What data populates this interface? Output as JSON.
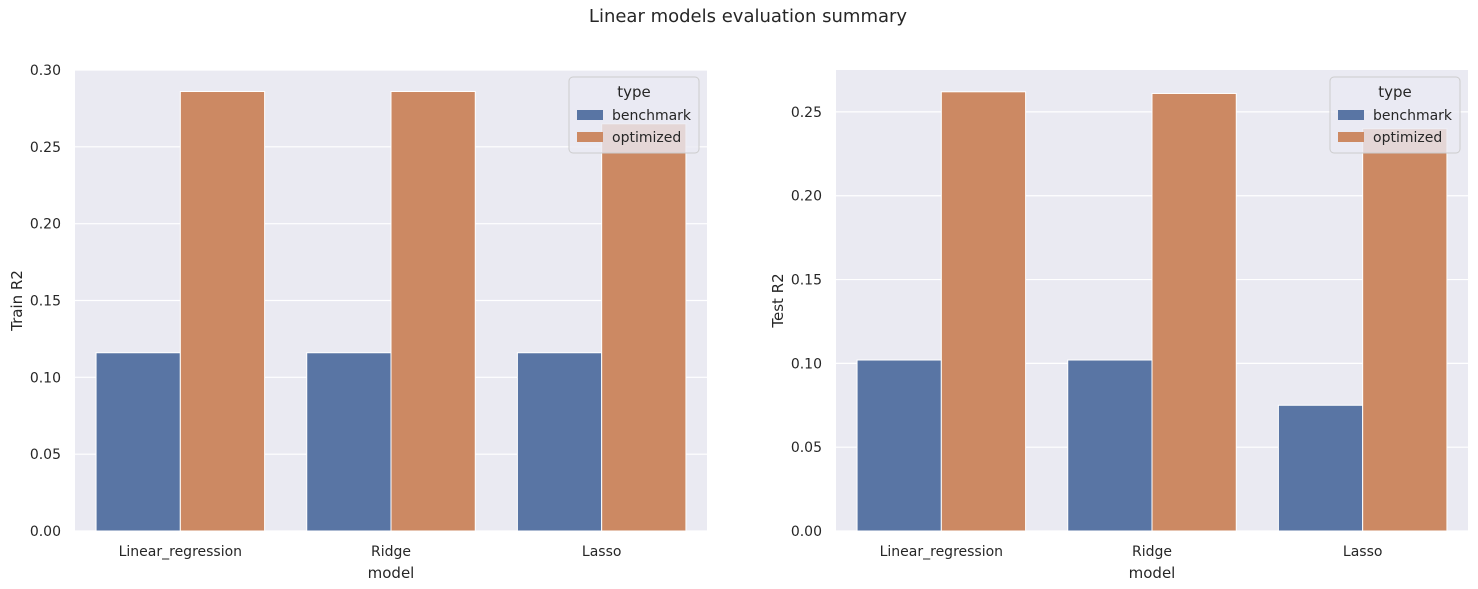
{
  "figure": {
    "title": "Linear models evaluation summary"
  },
  "colors": {
    "benchmark": "#5975a4",
    "optimized": "#cc8963",
    "background": "#eaeaf2",
    "grid": "#ffffff"
  },
  "chart_data": [
    {
      "type": "bar",
      "title": "",
      "xlabel": "model",
      "ylabel": "Train R2",
      "categories": [
        "Linear_regression",
        "Ridge",
        "Lasso"
      ],
      "series": [
        {
          "name": "benchmark",
          "values": [
            0.116,
            0.116,
            0.116
          ]
        },
        {
          "name": "optimized",
          "values": [
            0.286,
            0.286,
            0.265
          ]
        }
      ],
      "ylim": [
        0,
        0.3
      ],
      "yticks": [
        "0.00",
        "0.05",
        "0.10",
        "0.15",
        "0.20",
        "0.25",
        "0.30"
      ],
      "legend": {
        "title": "type",
        "position": "upper right"
      },
      "grid": true
    },
    {
      "type": "bar",
      "title": "",
      "xlabel": "model",
      "ylabel": "Test R2",
      "categories": [
        "Linear_regression",
        "Ridge",
        "Lasso"
      ],
      "series": [
        {
          "name": "benchmark",
          "values": [
            0.102,
            0.102,
            0.075
          ]
        },
        {
          "name": "optimized",
          "values": [
            0.262,
            0.261,
            0.24
          ]
        }
      ],
      "ylim": [
        0,
        0.275
      ],
      "yticks": [
        "0.00",
        "0.05",
        "0.10",
        "0.15",
        "0.20",
        "0.25"
      ],
      "legend": {
        "title": "type",
        "position": "upper right"
      },
      "grid": true
    }
  ]
}
